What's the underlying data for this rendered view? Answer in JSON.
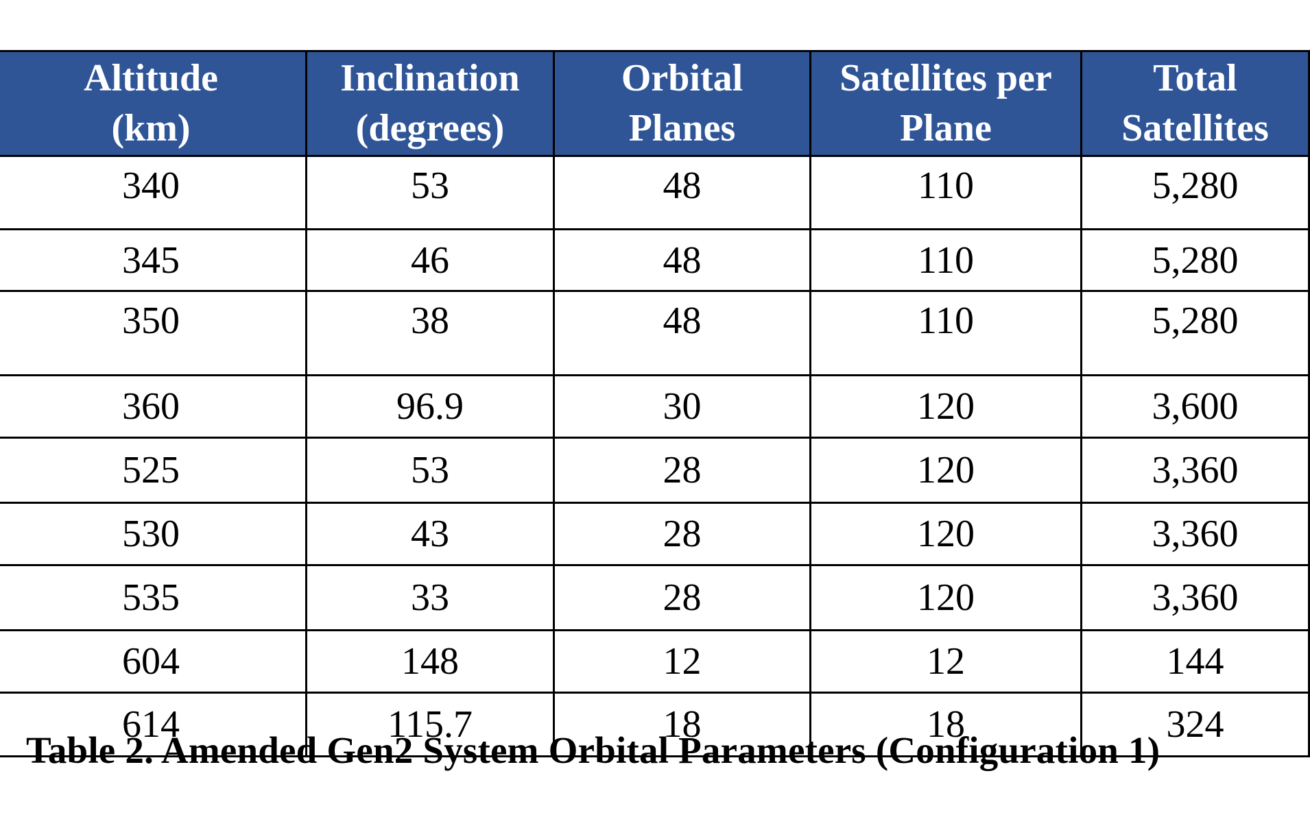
{
  "table": {
    "headers": [
      [
        "Altitude",
        "(km)"
      ],
      [
        "Inclination",
        "(degrees)"
      ],
      [
        "Orbital",
        "Planes"
      ],
      [
        "Satellites per",
        "Plane"
      ],
      [
        "Total",
        "Satellites"
      ]
    ],
    "rows": [
      [
        "340",
        "53",
        "48",
        "110",
        "5,280"
      ],
      [
        "345",
        "46",
        "48",
        "110",
        "5,280"
      ],
      [
        "350",
        "38",
        "48",
        "110",
        "5,280"
      ],
      [
        "360",
        "96.9",
        "30",
        "120",
        "3,600"
      ],
      [
        "525",
        "53",
        "28",
        "120",
        "3,360"
      ],
      [
        "530",
        "43",
        "28",
        "120",
        "3,360"
      ],
      [
        "535",
        "33",
        "28",
        "120",
        "3,360"
      ],
      [
        "604",
        "148",
        "12",
        "12",
        "144"
      ],
      [
        "614",
        "115.7",
        "18",
        "18",
        "324"
      ]
    ],
    "header_color": "#2f5597"
  },
  "caption": "Table 2.  Amended Gen2 System Orbital Parameters (Configuration 1)"
}
